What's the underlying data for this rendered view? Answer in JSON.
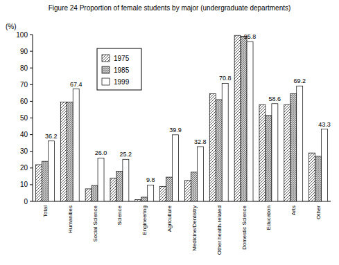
{
  "chart_data": {
    "type": "bar",
    "title": "Figure 24 Proportion of female students by major (undergraduate departments)",
    "y_label": "(%)",
    "categories": [
      "Total",
      "Humanities",
      "Social Science",
      "Science",
      "Engineering",
      "Agriculture",
      "Medicine/Dentistry",
      "Other health-related",
      "Domestic Science",
      "Education",
      "Arts",
      "Other"
    ],
    "series": [
      {
        "name": "1975",
        "color": "#404040",
        "values": [
          22,
          59.5,
          7.5,
          14,
          1,
          9,
          12.5,
          64.5,
          99.5,
          58,
          58,
          29
        ]
      },
      {
        "name": "1985",
        "color": "#606060",
        "values": [
          24,
          59.5,
          9.5,
          18,
          2.5,
          14.5,
          17.5,
          61,
          99,
          51.5,
          64.5,
          27
        ]
      },
      {
        "name": "1999",
        "color": "#ffffff",
        "data_labels": true,
        "values": [
          36.2,
          67.4,
          26.0,
          25.2,
          9.8,
          39.9,
          32.8,
          70.8,
          95.8,
          58.6,
          69.2,
          43.3
        ],
        "value_labels": [
          "36.2",
          "67.4",
          "26.0",
          "25.2",
          "9.8",
          "39.9",
          "32.8",
          "70.8",
          "95.8",
          "58.6",
          "69.2",
          "43.3"
        ]
      }
    ],
    "ylim": [
      0,
      100
    ],
    "yticks": [
      0,
      10,
      20,
      30,
      40,
      50,
      60,
      70,
      80,
      90,
      100
    ],
    "grid": false,
    "legend": "upper-left"
  }
}
